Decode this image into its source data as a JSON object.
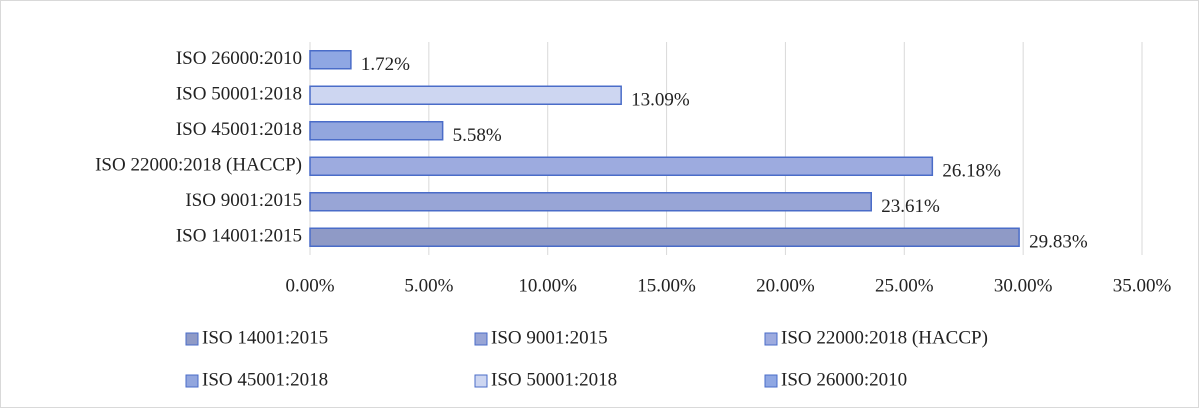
{
  "chart_data": {
    "type": "bar",
    "orientation": "horizontal",
    "categories": [
      "ISO 14001:2015",
      "ISO 9001:2015",
      "ISO 22000:2018 (HACCP)",
      "ISO 45001:2018",
      "ISO 50001:2018",
      "ISO 26000:2010"
    ],
    "values": [
      29.83,
      23.61,
      26.18,
      5.58,
      13.09,
      1.72
    ],
    "value_labels": [
      "29.83%",
      "23.61%",
      "26.18%",
      "5.58%",
      "13.09%",
      "1.72%"
    ],
    "colors": [
      "#8f9ac6",
      "#98a5d6",
      "#9dabdf",
      "#92a6de",
      "#cdd6f1",
      "#8fa7e3"
    ],
    "xlim": [
      0,
      35
    ],
    "xticks": [
      {
        "value": 0,
        "label": "0.00%"
      },
      {
        "value": 5,
        "label": "5.00%"
      },
      {
        "value": 10,
        "label": "10.00%"
      },
      {
        "value": 15,
        "label": "15.00%"
      },
      {
        "value": 20,
        "label": "20.00%"
      },
      {
        "value": 25,
        "label": "25.00%"
      },
      {
        "value": 30,
        "label": "30.00%"
      },
      {
        "value": 35,
        "label": "35.00%"
      }
    ],
    "grid": true,
    "legend": "bottom"
  }
}
